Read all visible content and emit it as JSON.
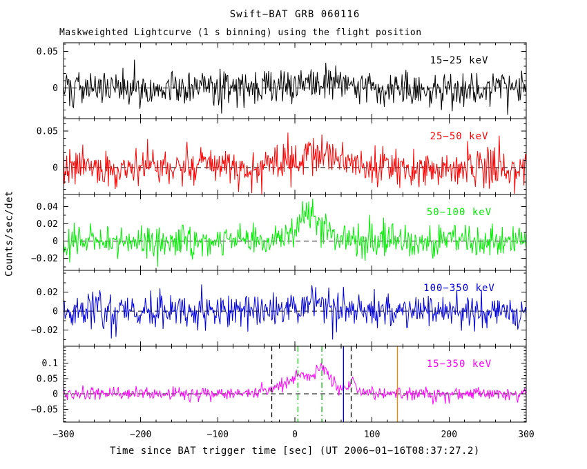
{
  "figure": {
    "background": "#ffffff",
    "title": "Swift−BAT GRB 060116",
    "subtitle": "Maskweighted Lightcurve (1 s binning) using the flight position",
    "xlabel": "Time since BAT trigger time [sec] (UT 2006−01−16T08:37:27.2)",
    "ylabel": "Counts/sec/det"
  },
  "chart_data": {
    "type": "line",
    "title": "Swift−BAT GRB 060116",
    "subtitle": "Maskweighted Lightcurve (1 s binning) using the flight position",
    "xlabel": "Time since BAT trigger time [sec] (UT 2006−01−16T08:37:27.2)",
    "ylabel": "Counts/sec/det",
    "grid": false,
    "xlim": [
      -300,
      300
    ],
    "bin_seconds": 1,
    "x_minor_step": 20,
    "x_major_ticks": [
      {
        "v": -300,
        "label": "−300"
      },
      {
        "v": -200,
        "label": "−200"
      },
      {
        "v": -100,
        "label": "−100"
      },
      {
        "v": 0,
        "label": "0"
      },
      {
        "v": 100,
        "label": "100"
      },
      {
        "v": 200,
        "label": "200"
      },
      {
        "v": 300,
        "label": "300"
      }
    ],
    "zero_line": {
      "color": "#000000",
      "style": "dashed"
    },
    "panels": [
      {
        "label": "15−25 keV",
        "color": "#000000",
        "ylim": [
          -0.042,
          0.062
        ],
        "yticks": [
          {
            "v": 0,
            "label": "0"
          },
          {
            "v": 0.05,
            "label": "0.05"
          }
        ],
        "y_minor_step": 0.01,
        "noise_sigma": 0.012,
        "burst_components": [
          {
            "center": 25,
            "sigma": 35,
            "amp": 0.01
          }
        ],
        "seed": 101
      },
      {
        "label": "25−50 keV",
        "color": "#ff0000",
        "ylim": [
          -0.037,
          0.067
        ],
        "yticks": [
          {
            "v": 0,
            "label": "0"
          },
          {
            "v": 0.05,
            "label": "0.05"
          }
        ],
        "y_minor_step": 0.01,
        "noise_sigma": 0.013,
        "burst_components": [
          {
            "center": 30,
            "sigma": 30,
            "amp": 0.018
          }
        ],
        "seed": 202
      },
      {
        "label": "50−100 keV",
        "color": "#00ee00",
        "ylim": [
          -0.034,
          0.054
        ],
        "yticks": [
          {
            "v": -0.02,
            "label": "−0.02"
          },
          {
            "v": 0,
            "label": "0"
          },
          {
            "v": 0.02,
            "label": "0.02"
          },
          {
            "v": 0.04,
            "label": "0.04"
          }
        ],
        "y_minor_step": 0.01,
        "noise_sigma": 0.009,
        "burst_components": [
          {
            "center": 0,
            "sigma": 20,
            "amp": 0.01
          },
          {
            "center": 25,
            "sigma": 15,
            "amp": 0.025
          }
        ],
        "seed": 303
      },
      {
        "label": "100−350 keV",
        "color": "#0000dd",
        "ylim": [
          -0.037,
          0.043
        ],
        "yticks": [
          {
            "v": -0.02,
            "label": "−0.02"
          },
          {
            "v": 0,
            "label": "0"
          },
          {
            "v": 0.02,
            "label": "0.02"
          }
        ],
        "y_minor_step": 0.01,
        "noise_sigma": 0.0095,
        "burst_components": [
          {
            "center": 30,
            "sigma": 25,
            "amp": 0.008
          }
        ],
        "seed": 404
      },
      {
        "label": "15−350 keV",
        "color": "#ff00ff",
        "ylim": [
          -0.092,
          0.155
        ],
        "yticks": [
          {
            "v": -0.05,
            "label": "−0.05"
          },
          {
            "v": 0,
            "label": "0"
          },
          {
            "v": 0.05,
            "label": "0.05"
          },
          {
            "v": 0.1,
            "label": "0.1"
          }
        ],
        "y_minor_step": 0.01,
        "noise_sigma": 0.011,
        "burst_components": [
          {
            "center": 15,
            "sigma": 35,
            "amp": 0.04
          },
          {
            "center": 5,
            "sigma": 8,
            "amp": 0.025
          },
          {
            "center": 35,
            "sigma": 8,
            "amp": 0.055
          },
          {
            "center": 75,
            "sigma": 4,
            "amp": 0.035
          }
        ],
        "event_lines": [
          {
            "x": -30,
            "color": "#000000",
            "style": "dashed"
          },
          {
            "x": 73,
            "color": "#000000",
            "style": "dashed"
          },
          {
            "x": 4,
            "color": "#00bb00",
            "style": "dashdot"
          },
          {
            "x": 35,
            "color": "#00bb00",
            "style": "dashdot"
          },
          {
            "x": 63,
            "color": "#0000cc",
            "style": "solid"
          },
          {
            "x": 133,
            "color": "#ee8800",
            "style": "solid"
          }
        ],
        "seed": 505
      }
    ]
  }
}
